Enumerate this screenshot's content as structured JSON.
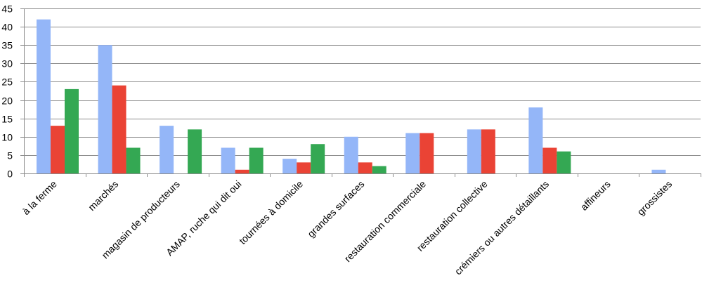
{
  "chart_data": {
    "type": "bar",
    "title": "",
    "xlabel": "",
    "ylabel": "",
    "ylim": [
      0,
      45
    ],
    "yticks": [
      0,
      5,
      10,
      15,
      20,
      25,
      30,
      35,
      40,
      45
    ],
    "grid": true,
    "legend": "none",
    "categories": [
      "à la ferme",
      "marchés",
      "magasin de producteurs",
      "AMAP, ruche qui dit oui",
      "tournées à domicile",
      "grandes surfaces",
      "restauration commerciale",
      "restauration collective",
      "crémiers ou autres détaillants",
      "affineurs",
      "grossistes"
    ],
    "series": [
      {
        "color": "#94b6f8",
        "values": [
          42,
          35,
          13,
          7,
          4,
          10,
          11,
          12,
          18,
          0,
          1
        ]
      },
      {
        "color": "#ea4335",
        "values": [
          13,
          24,
          0,
          1,
          3,
          3,
          11,
          12,
          7,
          0,
          0
        ]
      },
      {
        "color": "#34a853",
        "values": [
          23,
          7,
          12,
          7,
          8,
          2,
          0,
          0,
          6,
          0,
          0
        ]
      }
    ]
  }
}
